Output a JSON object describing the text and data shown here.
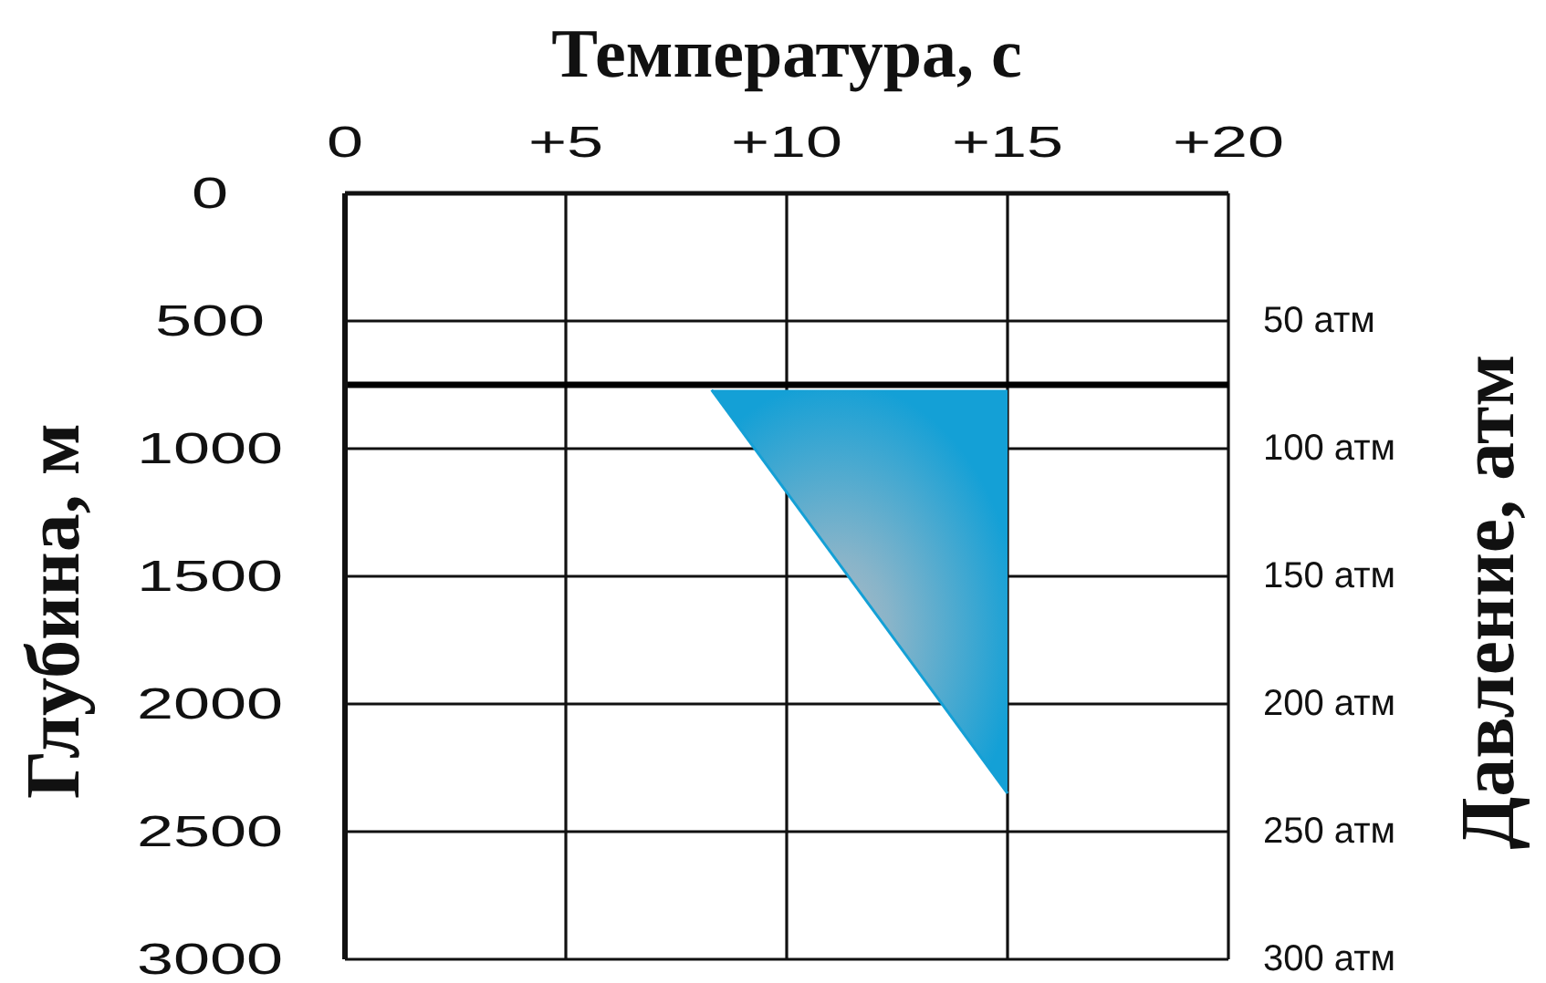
{
  "chart_data": {
    "type": "line",
    "xlabel": "Температура, с",
    "ylabel": "Глубина, м",
    "y2label": "Давление, атм",
    "xlim": [
      0,
      20
    ],
    "xticks": [
      0,
      {
        "value": 5,
        "label": "+5"
      },
      {
        "value": 10,
        "label": "+10"
      },
      {
        "value": 15,
        "label": "+15"
      },
      {
        "value": 20,
        "label": "+20"
      }
    ],
    "ylim": [
      3000,
      0
    ],
    "yticks": [
      0,
      500,
      1000,
      1500,
      2000,
      2500,
      3000
    ],
    "y2lim": [
      300,
      0
    ],
    "y2ticks": [
      {
        "value": 50,
        "label": "50 атм"
      },
      {
        "value": 100,
        "label": "100 атм"
      },
      {
        "value": 150,
        "label": "150 атм"
      },
      {
        "value": 200,
        "label": "200 атм"
      },
      {
        "value": 250,
        "label": "250 атм"
      },
      {
        "value": 300,
        "label": "300 атм"
      }
    ],
    "grid": true,
    "ref_lines": [
      {
        "axis": "y",
        "value": 750,
        "color": "#000000"
      }
    ],
    "x": [
      8.3,
      15
    ],
    "series": [
      {
        "values": [
          770,
          2350
        ],
        "lower": [
          770,
          770
        ],
        "upper": [
          770,
          2350
        ],
        "color": "#14a0d6"
      }
    ]
  }
}
